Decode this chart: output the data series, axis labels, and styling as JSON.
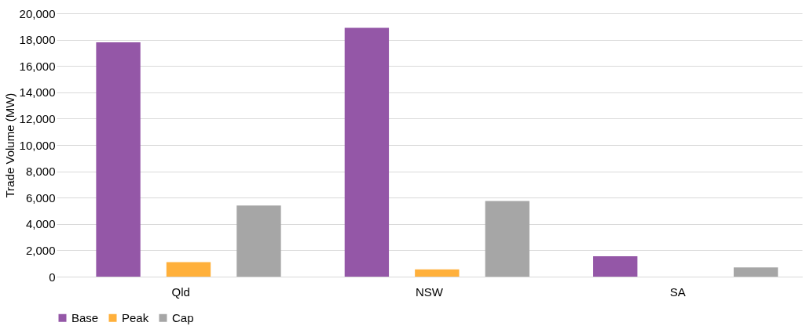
{
  "chart_data": {
    "type": "bar",
    "ylabel": "Trade Volume (MW)",
    "categories": [
      "Qld",
      "NSW",
      "SA"
    ],
    "series": [
      {
        "name": "Base",
        "color": "#9457a7",
        "values": [
          17800,
          18900,
          1550
        ]
      },
      {
        "name": "Peak",
        "color": "#ffb03b",
        "values": [
          1100,
          550,
          0
        ]
      },
      {
        "name": "Cap",
        "color": "#a6a6a6",
        "values": [
          5400,
          5750,
          700
        ]
      }
    ],
    "ylim": [
      0,
      20000
    ],
    "yticks": [
      0,
      {
        "value": 2000,
        "label": "2,000"
      },
      {
        "value": 4000,
        "label": "4,000"
      },
      {
        "value": 6000,
        "label": "6,000"
      },
      {
        "value": 8000,
        "label": "8,000"
      },
      {
        "value": 10000,
        "label": "10,000"
      },
      {
        "value": 12000,
        "label": "12,000"
      },
      {
        "value": 14000,
        "label": "14,000"
      },
      {
        "value": 16000,
        "label": "16,000"
      },
      {
        "value": 18000,
        "label": "18,000"
      },
      {
        "value": 20000,
        "label": "20,000"
      }
    ],
    "grid": "y",
    "legend": "bottom"
  }
}
